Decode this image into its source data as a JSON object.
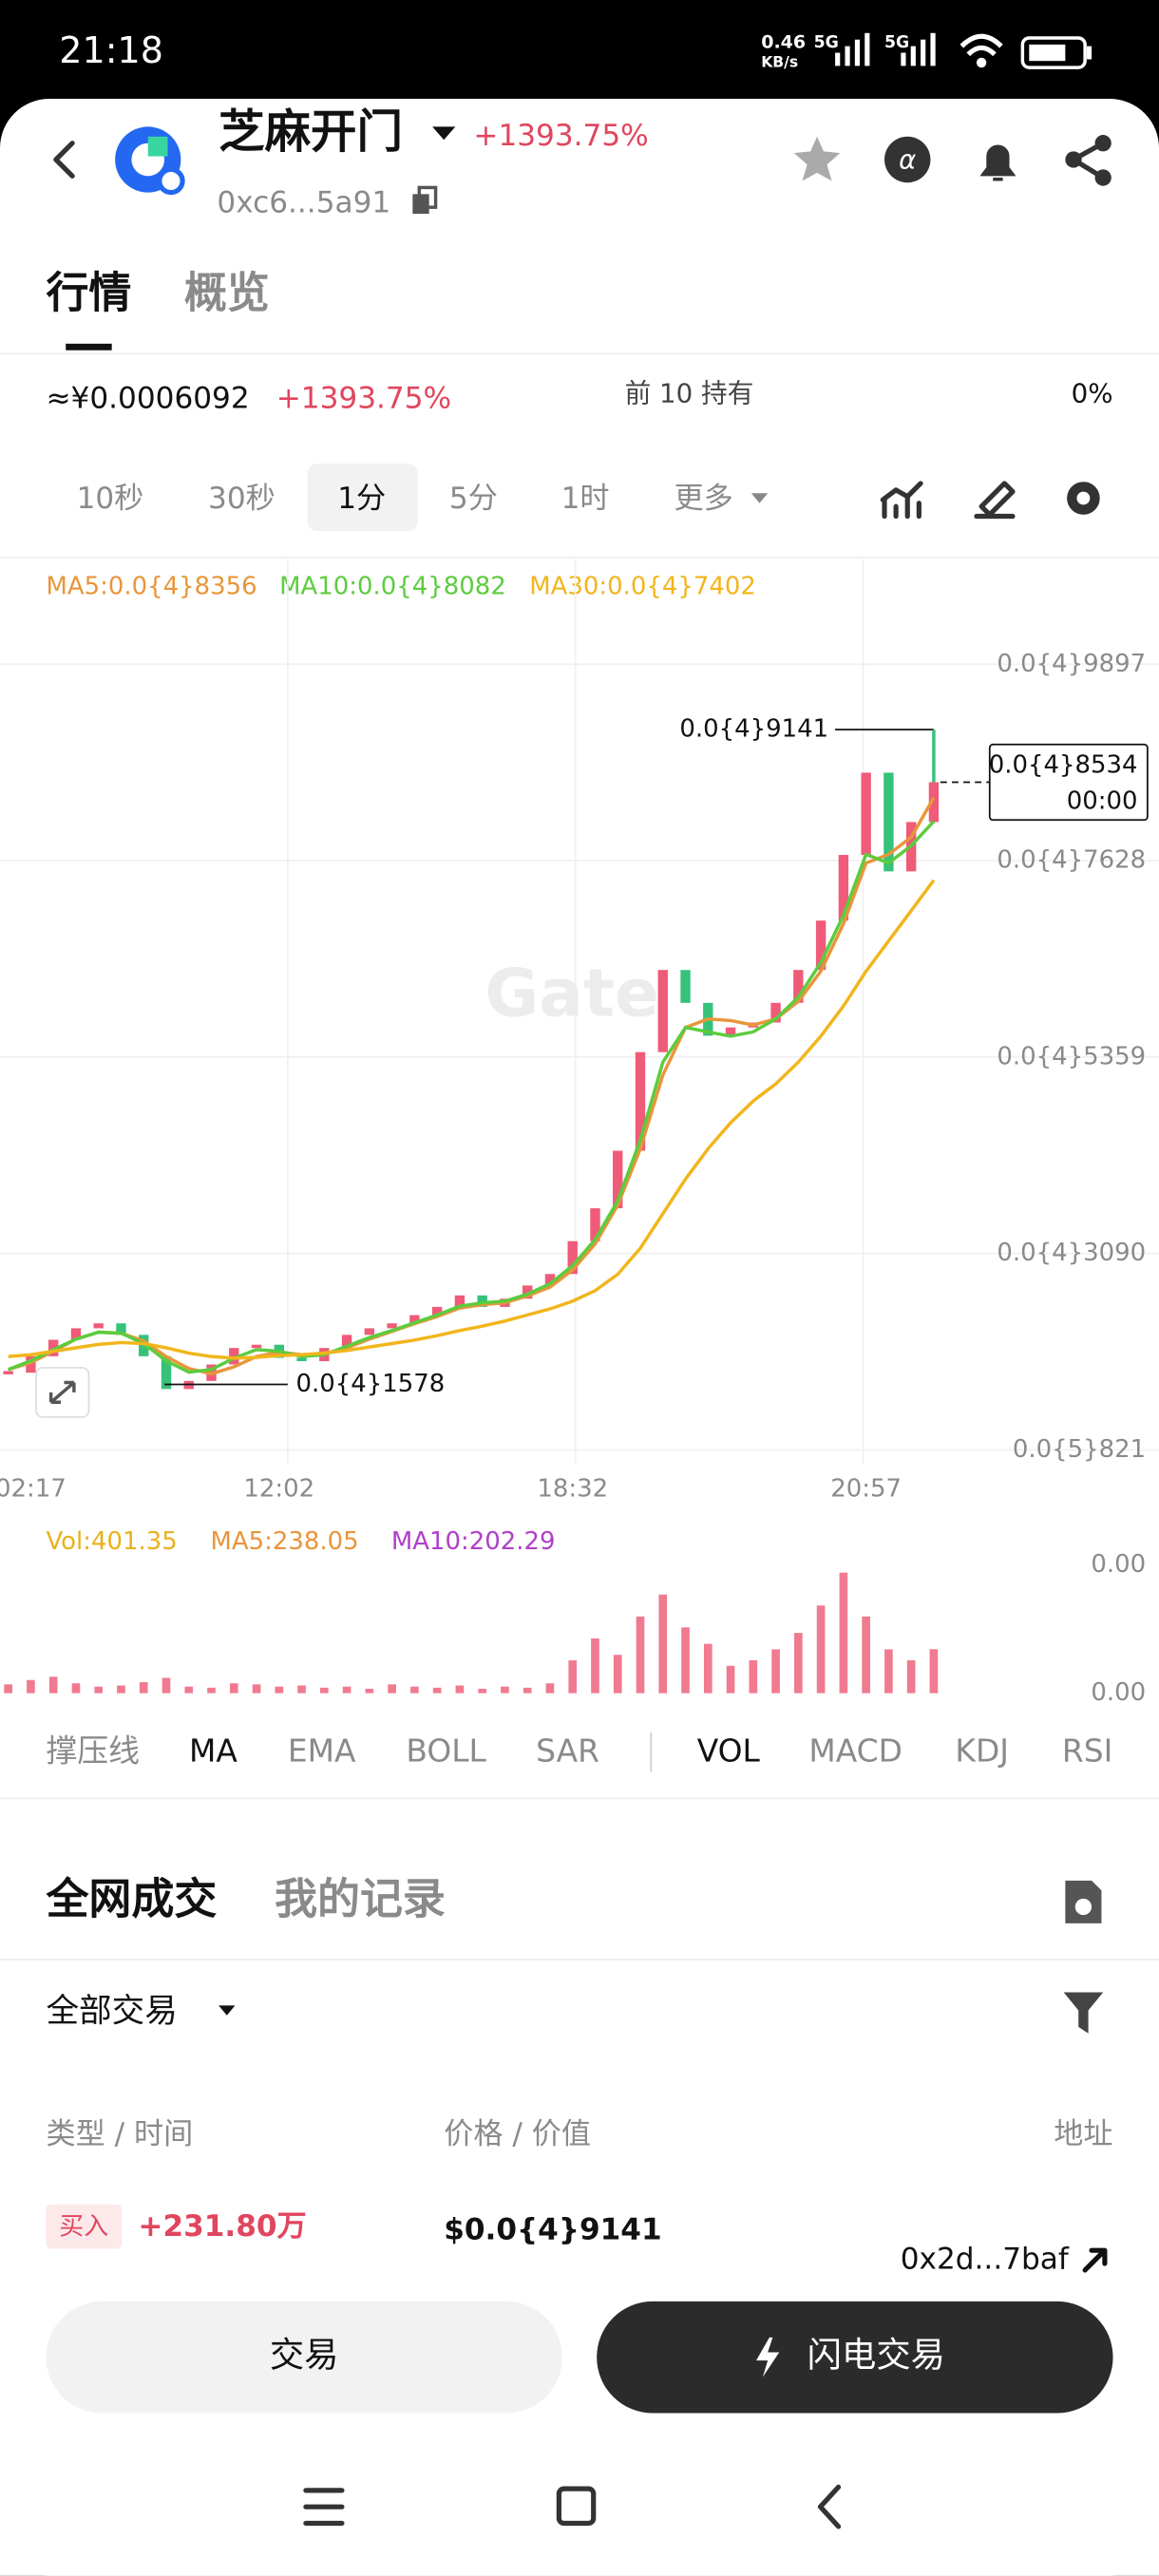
{
  "status_bar": {
    "time": "21:18",
    "speed": "0.46",
    "speed_unit": "KB/s",
    "network_1": "5G",
    "network_2": "5G"
  },
  "header": {
    "title": "芝麻开门",
    "change": "+1393.75%",
    "address": "0xc6...5a91"
  },
  "tabs": [
    "行情",
    "概览"
  ],
  "summary": {
    "price": "≈¥0.0006092",
    "change": "+1393.75%",
    "holders_label": "前 10 持有",
    "holders_value": "0%"
  },
  "intervals": [
    "10秒",
    "30秒",
    "1分",
    "5分",
    "1时",
    "更多"
  ],
  "chart_data": [
    {
      "type": "candlestick",
      "watermark": "Gate",
      "up_color": "#ef5b78",
      "down_color": "#36c27a",
      "categories": [
        null,
        "02:17",
        null,
        null,
        null,
        null,
        null,
        null,
        null,
        null,
        null,
        null,
        "12:02",
        null,
        null,
        null,
        null,
        null,
        null,
        null,
        null,
        null,
        null,
        null,
        null,
        "18:32",
        null,
        null,
        null,
        null,
        null,
        null,
        null,
        null,
        null,
        null,
        null,
        null,
        "20:57",
        null,
        null,
        null
      ],
      "close": [
        1.713e-05,
        1.903e-05,
        2.093e-05,
        2.226e-05,
        2.283e-05,
        2.15e-05,
        1.903e-05,
        1.524e-05,
        1.618e-05,
        1.808e-05,
        1.998e-05,
        2.036e-05,
        1.884e-05,
        1.846e-05,
        1.998e-05,
        2.15e-05,
        2.226e-05,
        2.283e-05,
        2.378e-05,
        2.473e-05,
        2.606e-05,
        2.473e-05,
        2.568e-05,
        2.72e-05,
        2.853e-05,
        3.232e-05,
        3.612e-05,
        4.277e-05,
        5.416e-05,
        6.365e-05,
        5.985e-05,
        5.606e-05,
        5.701e-05,
        5.758e-05,
        5.985e-05,
        6.365e-05,
        6.935e-05,
        7.694e-05,
        8.644e-05,
        7.504e-05,
        8.074e-05,
        8.534e-05
      ],
      "series": [
        {
          "name": "MA5:0.0{4}8356",
          "color": "#e8963a",
          "values": [
            1.75e-05,
            1.83e-05,
            1.96e-05,
            2.1e-05,
            2.18e-05,
            2.17e-05,
            2.08e-05,
            1.9e-05,
            1.76e-05,
            1.7e-05,
            1.78e-05,
            1.9e-05,
            1.95e-05,
            1.92e-05,
            1.93e-05,
            2e-05,
            2.1e-05,
            2.19e-05,
            2.28e-05,
            2.36e-05,
            2.46e-05,
            2.5e-05,
            2.52e-05,
            2.6e-05,
            2.7e-05,
            2.9e-05,
            3.2e-05,
            3.65e-05,
            4.3e-05,
            5.15e-05,
            5.7e-05,
            5.8e-05,
            5.78e-05,
            5.73e-05,
            5.8e-05,
            6e-05,
            6.35e-05,
            6.9e-05,
            7.6e-05,
            7.7e-05,
            7.9e-05,
            8.356e-05
          ]
        },
        {
          "name": "MA10:0.0{4}8082",
          "color": "#5ccc3f",
          "values": [
            1.75e-05,
            1.85e-05,
            1.98e-05,
            2.1e-05,
            2.18e-05,
            2.17e-05,
            2.05e-05,
            1.85e-05,
            1.72e-05,
            1.75e-05,
            1.88e-05,
            1.98e-05,
            1.96e-05,
            1.9e-05,
            1.92e-05,
            2.02e-05,
            2.12e-05,
            2.2e-05,
            2.29e-05,
            2.38e-05,
            2.48e-05,
            2.52e-05,
            2.54e-05,
            2.62e-05,
            2.74e-05,
            2.95e-05,
            3.25e-05,
            3.7e-05,
            4.4e-05,
            5.3e-05,
            5.7e-05,
            5.65e-05,
            5.6e-05,
            5.65e-05,
            5.8e-05,
            6.05e-05,
            6.45e-05,
            7e-05,
            7.7e-05,
            7.6e-05,
            7.8e-05,
            8.082e-05
          ]
        },
        {
          "name": "MA30:0.0{4}7402",
          "color": "#f2b51c",
          "values": [
            1.9e-05,
            1.92e-05,
            1.96e-05,
            2e-05,
            2.04e-05,
            2.06e-05,
            2.05e-05,
            2e-05,
            1.94e-05,
            1.9e-05,
            1.88e-05,
            1.89e-05,
            1.91e-05,
            1.92e-05,
            1.94e-05,
            1.97e-05,
            2.01e-05,
            2.05e-05,
            2.09e-05,
            2.14e-05,
            2.2e-05,
            2.25e-05,
            2.31e-05,
            2.38e-05,
            2.45e-05,
            2.54e-05,
            2.66e-05,
            2.85e-05,
            3.15e-05,
            3.55e-05,
            3.95e-05,
            4.3e-05,
            4.6e-05,
            4.85e-05,
            5.05e-05,
            5.3e-05,
            5.6e-05,
            5.95e-05,
            6.35e-05,
            6.7e-05,
            7.05e-05,
            7.402e-05
          ]
        }
      ],
      "ylim": [
        8.21e-06,
        9.897e-05
      ],
      "yticks": [
        {
          "value": 9.897e-05,
          "label": "0.0{4}9897"
        },
        {
          "value": 7.628e-05,
          "label": "0.0{4}7628"
        },
        {
          "value": 5.359e-05,
          "label": "0.0{4}5359"
        },
        {
          "value": 3.09e-05,
          "label": "0.0{4}3090"
        },
        {
          "value": 8.21e-06,
          "label": "0.0{5}821"
        }
      ],
      "annotations": {
        "high": {
          "value": 9.141e-05,
          "label": "0.0{4}9141"
        },
        "low": {
          "value": 1.578e-05,
          "label": "0.0{4}1578"
        },
        "last": {
          "value": 8.534e-05,
          "label": "0.0{4}8534",
          "time": "00:00"
        }
      },
      "grid": true
    },
    {
      "type": "bar",
      "legend": [
        {
          "text": "Vol:401.35",
          "color": "#e8b21c"
        },
        {
          "text": "MA5:238.05",
          "color": "#e8963a"
        },
        {
          "text": "MA10:202.29",
          "color": "#b040c8"
        }
      ],
      "axis_labels": [
        "0.00",
        "0.00"
      ],
      "color": "#f07a90",
      "ylim": [
        0,
        1200
      ],
      "values": [
        80,
        120,
        150,
        90,
        60,
        70,
        100,
        140,
        60,
        50,
        90,
        80,
        60,
        70,
        50,
        60,
        40,
        80,
        60,
        50,
        70,
        40,
        60,
        50,
        90,
        300,
        500,
        350,
        700,
        900,
        600,
        450,
        250,
        300,
        400,
        550,
        800,
        1100,
        700,
        400,
        300,
        401.35
      ]
    }
  ],
  "indicators": [
    "撑压线",
    "MA",
    "EMA",
    "BOLL",
    "SAR",
    "VOL",
    "MACD",
    "KDJ",
    "RSI"
  ],
  "trades": {
    "tabs": [
      "全网成交",
      "我的记录"
    ],
    "filter": "全部交易",
    "columns": [
      "类型 / 时间",
      "价格 / 价值",
      "地址"
    ],
    "rows": [
      {
        "side": "买入",
        "amount": "+231.80万",
        "price": "$0.0{4}9141",
        "address": "0x2d...7baf"
      }
    ]
  },
  "actions": [
    "交易",
    "闪电交易"
  ]
}
